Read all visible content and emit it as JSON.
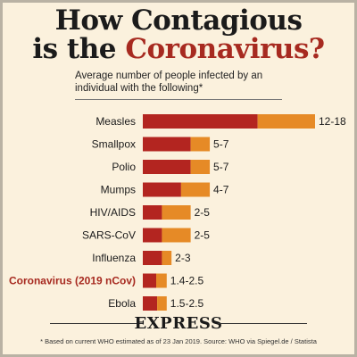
{
  "header": {
    "title_line1": "How Contagious",
    "title_line2_prefix": "is the ",
    "title_line2_accent": "Coronavirus?",
    "subtitle": "Average number of people infected by an individual with the following*"
  },
  "brand": "EXPRESS",
  "footnote": "* Based on current WHO estimated as of 23 Jan 2019. Source: WHO via Spiegel.de / Statista",
  "colors": {
    "low_segment": "#b32520",
    "range_segment": "#e68a26",
    "highlight_text": "#a72a20",
    "background": "#fbf1dd"
  },
  "chart_data": {
    "type": "bar",
    "orientation": "horizontal",
    "stacked_range": true,
    "categories": [
      "Measles",
      "Smallpox",
      "Polio",
      "Mumps",
      "HIV/AIDS",
      "SARS-CoV",
      "Influenza",
      "Coronavirus (2019 nCov)",
      "Ebola"
    ],
    "series": [
      {
        "values": [
          12,
          5,
          5,
          4,
          2,
          2,
          2,
          1.4,
          1.5
        ]
      },
      {
        "values": [
          18,
          7,
          7,
          7,
          5,
          5,
          3,
          2.5,
          2.5
        ]
      }
    ],
    "value_labels": [
      "12-18",
      "5-7",
      "5-7",
      "4-7",
      "2-5",
      "2-5",
      "2-3",
      "1.4-2.5",
      "1.5-2.5"
    ],
    "highlight_category": "Coronavirus (2019 nCov)",
    "xlim": [
      0,
      18
    ],
    "grid": false,
    "legend": "none"
  }
}
